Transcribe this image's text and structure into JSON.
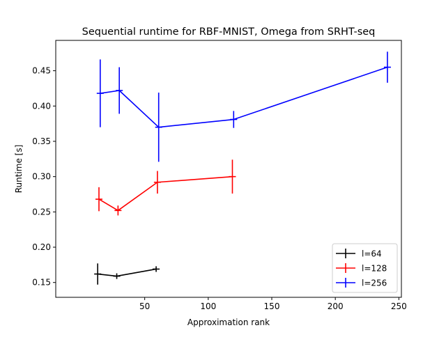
{
  "chart_data": {
    "type": "line",
    "title": "Sequential runtime for RBF-MNIST, Omega from SRHT-seq",
    "xlabel": "Approximation rank",
    "ylabel": "Runtime [s]",
    "xlim": [
      -20,
      252
    ],
    "ylim": [
      0.129,
      0.493
    ],
    "xticks": [
      50,
      100,
      150,
      200,
      250
    ],
    "yticks": [
      0.15,
      0.2,
      0.25,
      0.3,
      0.35,
      0.4,
      0.45
    ],
    "ytick_labels": [
      "0.15",
      "0.20",
      "0.25",
      "0.30",
      "0.35",
      "0.40",
      "0.45"
    ],
    "grid": false,
    "legend_position": "lower right",
    "series": [
      {
        "name": "l=64",
        "color": "#000000",
        "points": [
          {
            "x": 13,
            "y": 0.162,
            "err": 0.015
          },
          {
            "x": 28,
            "y": 0.159,
            "err": 0.004
          },
          {
            "x": 59,
            "y": 0.169,
            "err": 0.004
          }
        ]
      },
      {
        "name": "l=128",
        "color": "#ff0000",
        "points": [
          {
            "x": 14,
            "y": 0.268,
            "err": 0.017
          },
          {
            "x": 29,
            "y": 0.252,
            "err": 0.007
          },
          {
            "x": 60,
            "y": 0.292,
            "err": 0.016
          },
          {
            "x": 119,
            "y": 0.3,
            "err": 0.024
          }
        ]
      },
      {
        "name": "l=256",
        "color": "#0000ff",
        "points": [
          {
            "x": 15,
            "y": 0.418,
            "err": 0.048
          },
          {
            "x": 30,
            "y": 0.422,
            "err": 0.033
          },
          {
            "x": 61,
            "y": 0.37,
            "err": 0.049
          },
          {
            "x": 120,
            "y": 0.381,
            "err": 0.012
          },
          {
            "x": 241,
            "y": 0.455,
            "err": 0.022
          }
        ]
      }
    ]
  }
}
